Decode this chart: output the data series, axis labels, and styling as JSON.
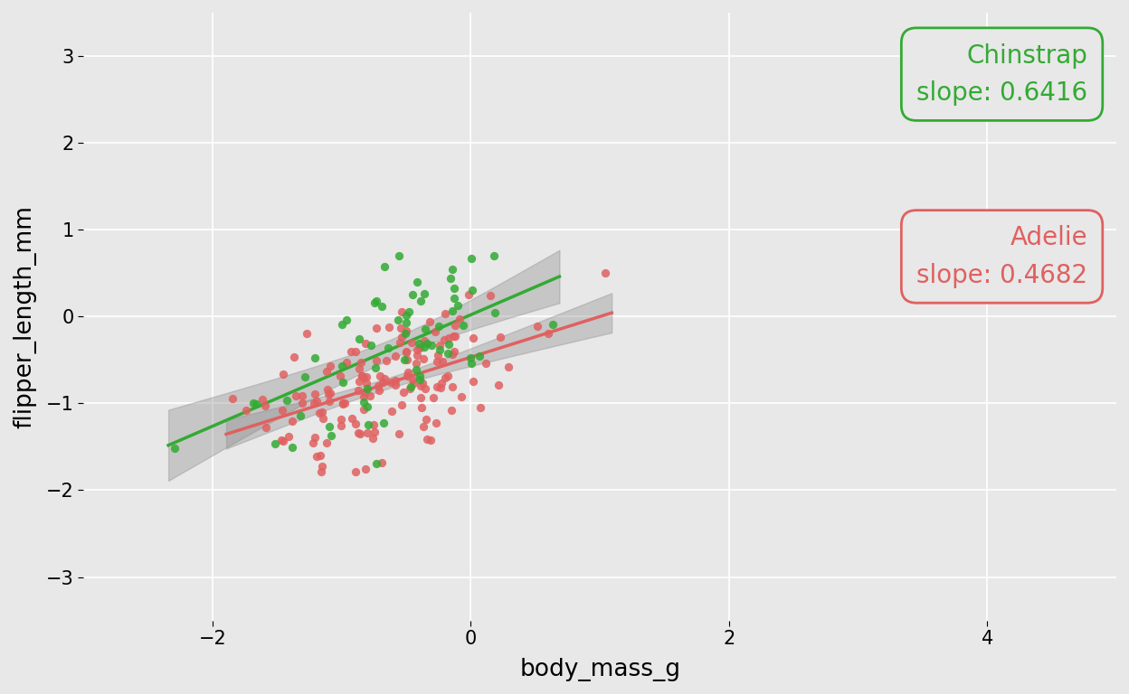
{
  "title": "",
  "xlabel": "body_mass_g",
  "ylabel": "flipper_length_mm",
  "chinstrap_slope": 0.6416,
  "adelie_slope": 0.4682,
  "chinstrap_color": "#33AA33",
  "adelie_color": "#E06060",
  "ci_color": "#888888",
  "bg_color": "#E8E8E8",
  "grid_color": "#FFFFFF",
  "xlim": [
    -3.0,
    5.0
  ],
  "ylim": [
    -3.5,
    3.5
  ],
  "xticks": [
    -2,
    0,
    2,
    4
  ],
  "yticks": [
    -3,
    -2,
    -1,
    0,
    1,
    2,
    3
  ],
  "point_size": 45,
  "point_alpha": 0.85,
  "chinstrap_label": "Chinstrap\nslope: 0.6416",
  "adelie_label": "Adelie\nslope: 0.4682",
  "annotation_fontsize": 20,
  "line_width": 2.5,
  "ci_alpha": 0.35
}
